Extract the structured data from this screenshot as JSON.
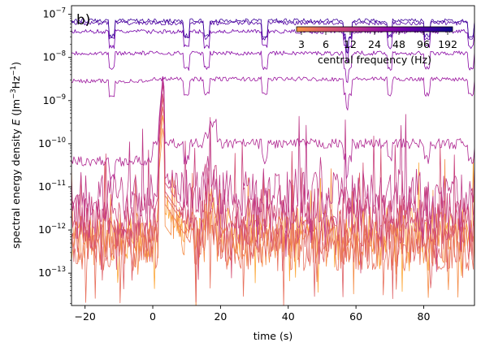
{
  "chart_data": {
    "type": "line",
    "panel_label": "b)",
    "xlabel": "time (s)",
    "ylabel": "spectral energy density E (Jm⁻³Hz⁻¹)",
    "ylabel_parts": {
      "prefix": "spectral energy density ",
      "var": "E",
      "unit_open": " (Jm",
      "exp1": "−3",
      "mid": "Hz",
      "exp2": "−1",
      "unit_close": ")"
    },
    "xlim": [
      -24,
      95
    ],
    "ylim_log10": [
      -13.75,
      -6.8
    ],
    "yscale": "log",
    "x_ticks": [
      -20,
      0,
      20,
      40,
      60,
      80
    ],
    "y_ticks_exponents": [
      -13,
      -12,
      -11,
      -10,
      -9,
      -8,
      -7
    ],
    "grid": false,
    "colorbar": {
      "label": "central frequency (Hz)",
      "ticks": [
        "3",
        "6",
        "12",
        "24",
        "48",
        "96",
        "192"
      ],
      "placement": "top-right",
      "colormap": "plasma_r",
      "colors": [
        "#f89540",
        "#e16462",
        "#cc4778",
        "#b12a90",
        "#8f0da4",
        "#6a00a8",
        "#3d049b",
        "#0d0887"
      ]
    },
    "series": [
      {
        "frequency": 3,
        "color": "#fca636",
        "baseline": -12.15,
        "spike_peak": -9.3,
        "post_level": -12.0
      },
      {
        "frequency": 4,
        "color": "#f58c46",
        "baseline": -12.3,
        "spike_peak": -9.6,
        "post_level": -12.3
      },
      {
        "frequency": 6,
        "color": "#e8705c",
        "baseline": -12.4,
        "spike_peak": -9.1,
        "post_level": -12.4
      },
      {
        "frequency": 8,
        "color": "#de5f65",
        "baseline": -12.2,
        "spike_peak": -8.9,
        "post_level": -12.2
      },
      {
        "frequency": 12,
        "color": "#d44e71",
        "baseline": -11.9,
        "spike_peak": -8.8,
        "post_level": -11.8
      },
      {
        "frequency": 16,
        "color": "#c9417d",
        "baseline": -11.7,
        "spike_peak": -8.6,
        "post_level": -11.5
      },
      {
        "frequency": 24,
        "color": "#bd3786",
        "baseline": -11.2,
        "spike_peak": -8.5,
        "post_level": -11.1
      },
      {
        "frequency": 32,
        "color": "#b02991",
        "baseline": -10.4,
        "spike_peak": -8.4,
        "post_level": -10.0
      },
      {
        "frequency": 48,
        "color": "#9c179e",
        "baseline": -8.55,
        "spike_peak": -8.4,
        "post_level": -8.5
      },
      {
        "frequency": 64,
        "color": "#8a0aa5",
        "baseline": -7.9,
        "spike_peak": -7.9,
        "post_level": -7.9
      },
      {
        "frequency": 96,
        "color": "#7201a8",
        "baseline": -7.4,
        "spike_peak": -7.4,
        "post_level": -7.4
      },
      {
        "frequency": 128,
        "color": "#5402a3",
        "baseline": -7.2,
        "spike_peak": -7.2,
        "post_level": -7.2
      },
      {
        "frequency": 192,
        "color": "#3e049c",
        "baseline": -7.15,
        "spike_peak": -7.15,
        "post_level": -7.15
      }
    ],
    "spike_time": 3
  }
}
